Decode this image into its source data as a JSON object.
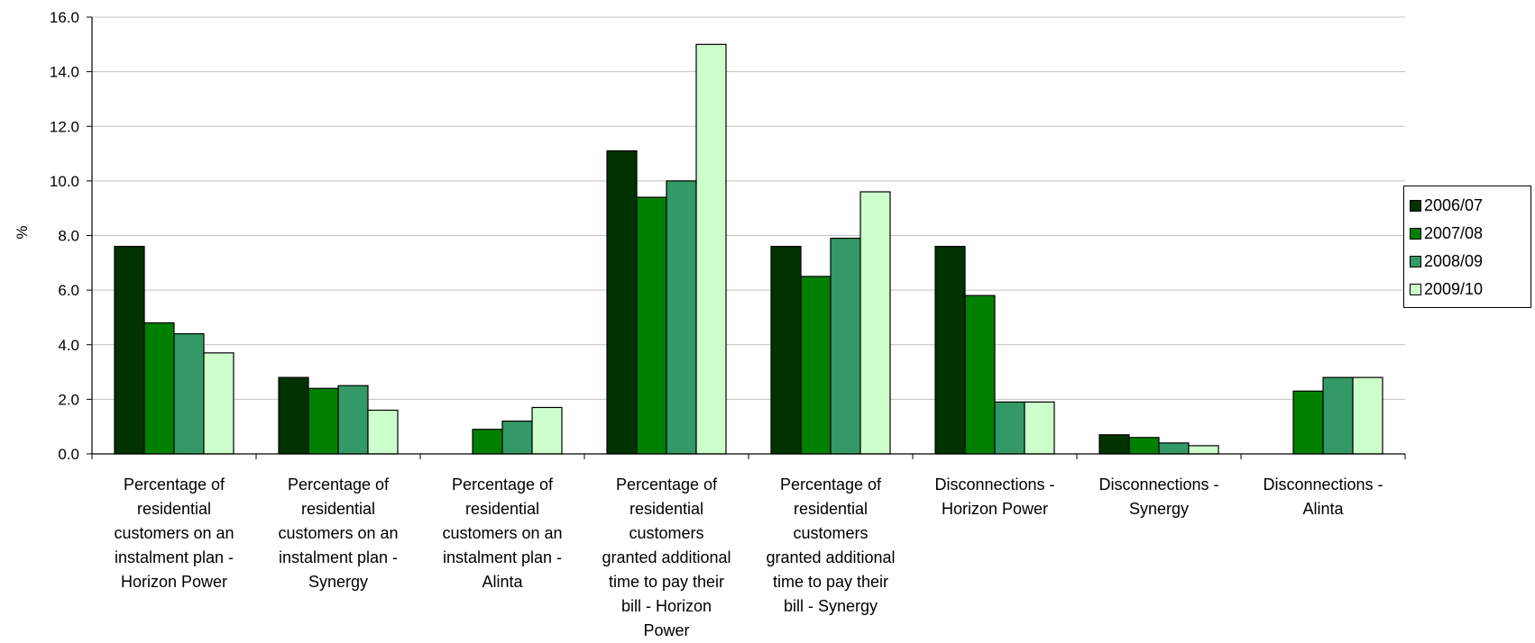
{
  "chart_data": {
    "type": "bar",
    "ylabel": "%",
    "ylim": [
      0,
      16
    ],
    "yticks": [
      "0.0",
      "2.0",
      "4.0",
      "6.0",
      "8.0",
      "10.0",
      "12.0",
      "14.0",
      "16.0"
    ],
    "grid": true,
    "legend_position": "right",
    "categories": [
      "Percentage of residential customers on an instalment plan - Horizon Power",
      "Percentage of residential customers on an instalment plan - Synergy",
      "Percentage of residential customers on an instalment plan - Alinta",
      "Percentage of residential customers granted additional time to pay their bill - Horizon Power",
      "Percentage of residential customers granted additional time to pay their bill - Synergy",
      "Disconnections - Horizon Power",
      "Disconnections - Synergy",
      "Disconnections - Alinta"
    ],
    "category_label_lines": [
      [
        "Percentage of",
        "residential",
        "customers on an",
        "instalment plan -",
        "Horizon Power"
      ],
      [
        "Percentage of",
        "residential",
        "customers on an",
        "instalment plan -",
        "Synergy"
      ],
      [
        "Percentage of",
        "residential",
        "customers on an",
        "instalment plan -",
        "Alinta"
      ],
      [
        "Percentage of",
        "residential",
        "customers",
        "granted additional",
        "time to pay their",
        "bill - Horizon",
        "Power"
      ],
      [
        "Percentage of",
        "residential",
        "customers",
        "granted additional",
        "time to pay their",
        "bill - Synergy"
      ],
      [
        "Disconnections -",
        "Horizon Power"
      ],
      [
        "Disconnections -",
        "Synergy"
      ],
      [
        "Disconnections -",
        "Alinta"
      ]
    ],
    "series": [
      {
        "name": "2006/07",
        "color": "#003300",
        "values": [
          7.6,
          2.8,
          null,
          11.1,
          7.6,
          7.6,
          0.7,
          null
        ]
      },
      {
        "name": "2007/08",
        "color": "#008000",
        "values": [
          4.8,
          2.4,
          0.9,
          9.4,
          6.5,
          5.8,
          0.6,
          2.3
        ]
      },
      {
        "name": "2008/09",
        "color": "#339966",
        "values": [
          4.4,
          2.5,
          1.2,
          10.0,
          7.9,
          1.9,
          0.4,
          2.8
        ]
      },
      {
        "name": "2009/10",
        "color": "#CCFFCC",
        "values": [
          3.7,
          1.6,
          1.7,
          15.0,
          9.6,
          1.9,
          0.3,
          2.8
        ]
      }
    ]
  }
}
